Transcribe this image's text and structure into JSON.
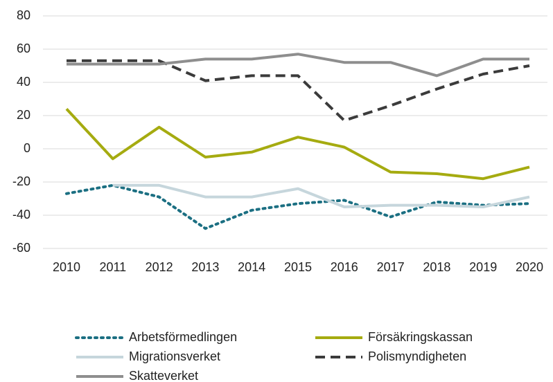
{
  "chart_data": {
    "type": "line",
    "categories": [
      "2010",
      "2011",
      "2012",
      "2013",
      "2014",
      "2015",
      "2016",
      "2017",
      "2018",
      "2019",
      "2020"
    ],
    "series": [
      {
        "name": "Arbetsförmedlingen",
        "color": "#1b6f82",
        "style": "dotted",
        "values": [
          -27,
          -22,
          -29,
          -48,
          -37,
          -33,
          -31,
          -41,
          -32,
          -34,
          -33
        ]
      },
      {
        "name": "Försäkringskassan",
        "color": "#a5ab10",
        "style": "solid",
        "values": [
          24,
          -6,
          13,
          -5,
          -2,
          7,
          1,
          -14,
          -15,
          -18,
          -11
        ]
      },
      {
        "name": "Migrationsverket",
        "color": "#c6d6dc",
        "style": "solid",
        "values": [
          null,
          -22,
          -22,
          -29,
          -29,
          -24,
          -35,
          -34,
          -34,
          -35,
          -29
        ]
      },
      {
        "name": "Polismyndigheten",
        "color": "#3b3b3b",
        "style": "dashed",
        "values": [
          53,
          53,
          53,
          41,
          44,
          44,
          17,
          26,
          36,
          45,
          50
        ]
      },
      {
        "name": "Skatteverket",
        "color": "#8e8e8e",
        "style": "solid",
        "values": [
          51,
          51,
          51,
          54,
          54,
          57,
          52,
          52,
          44,
          54,
          54
        ]
      }
    ],
    "ylim": [
      -60,
      80
    ],
    "yticks": [
      -60,
      -40,
      -20,
      0,
      20,
      40,
      60,
      80
    ],
    "grid": true
  }
}
